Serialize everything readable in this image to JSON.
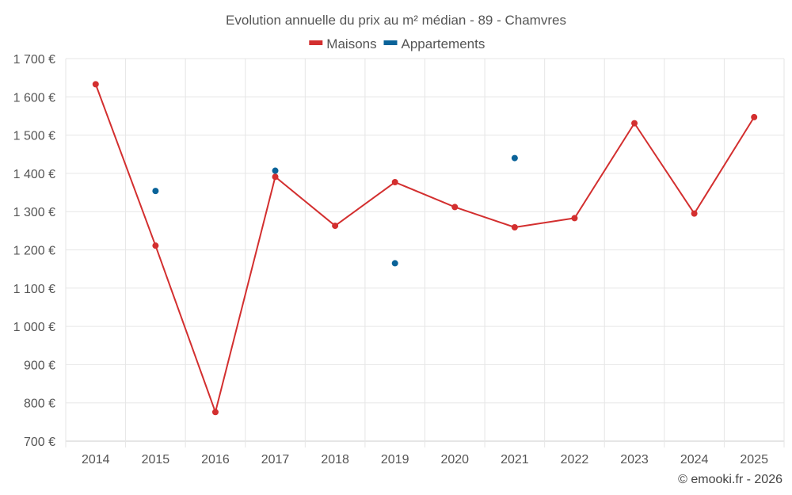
{
  "chart_data": {
    "type": "line",
    "title": "Evolution annuelle du prix au m² médian - 89 - Chamvres",
    "categories": [
      "2014",
      "2015",
      "2016",
      "2017",
      "2018",
      "2019",
      "2020",
      "2021",
      "2022",
      "2023",
      "2024",
      "2025"
    ],
    "ylim": [
      700,
      1700
    ],
    "yticks": [
      700,
      800,
      900,
      1000,
      1100,
      1200,
      1300,
      1400,
      1500,
      1600,
      1700
    ],
    "ytick_labels": [
      "700 €",
      "800 €",
      "900 €",
      "1 000 €",
      "1 100 €",
      "1 200 €",
      "1 300 €",
      "1 400 €",
      "1 500 €",
      "1 600 €",
      "1 700 €"
    ],
    "grid": true,
    "legend_position": "top-center",
    "series": [
      {
        "name": "Maisons",
        "color": "#d32f2f",
        "line": true,
        "values": [
          1633,
          1211,
          776,
          1391,
          1263,
          1377,
          1312,
          1259,
          1283,
          1531,
          1295,
          1547
        ]
      },
      {
        "name": "Appartements",
        "color": "#0a6399",
        "line": false,
        "values": [
          null,
          1354,
          null,
          1407,
          null,
          1165,
          null,
          1440,
          null,
          null,
          null,
          null
        ]
      }
    ]
  },
  "credit": "© emooki.fr - 2026"
}
